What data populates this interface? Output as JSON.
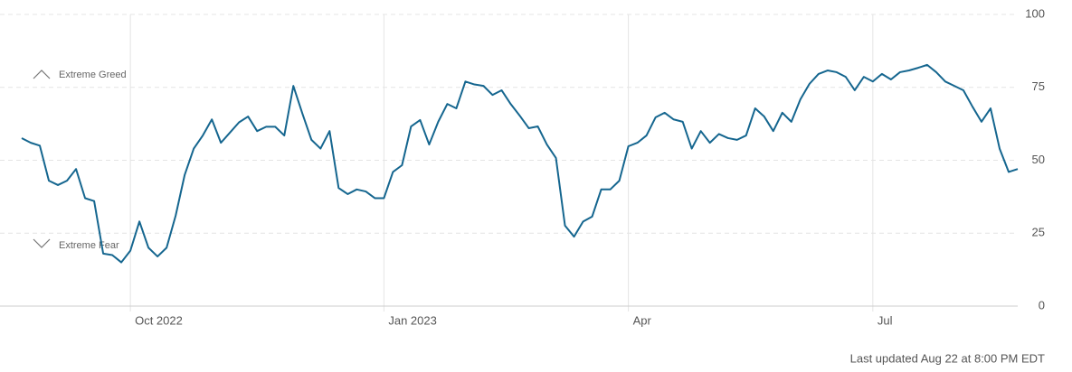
{
  "chart_data": {
    "type": "line",
    "annotations": [
      "Extreme Greed",
      "Extreme Fear"
    ],
    "footer": "Last updated Aug 22 at 8:00 PM EDT",
    "categories": [
      null,
      null,
      null,
      null,
      null,
      null,
      null,
      null,
      null,
      null,
      null,
      null,
      "Oct 2022",
      null,
      null,
      null,
      null,
      null,
      null,
      null,
      null,
      null,
      null,
      null,
      null,
      null,
      null,
      null,
      null,
      null,
      null,
      null,
      null,
      null,
      null,
      null,
      null,
      null,
      null,
      null,
      "Jan 2023",
      null,
      null,
      null,
      null,
      null,
      null,
      null,
      null,
      null,
      null,
      null,
      null,
      null,
      null,
      null,
      null,
      null,
      null,
      null,
      null,
      null,
      null,
      null,
      null,
      null,
      null,
      "Apr",
      null,
      null,
      null,
      null,
      null,
      null,
      null,
      null,
      null,
      null,
      null,
      null,
      null,
      null,
      null,
      null,
      null,
      null,
      null,
      null,
      null,
      null,
      null,
      null,
      null,
      null,
      "Jul",
      null,
      null,
      null,
      null,
      null,
      null,
      null,
      null,
      null,
      null,
      null,
      null,
      null,
      null,
      null,
      null
    ],
    "series": [
      {
        "color": "#15668f",
        "values": [
          57.6,
          56,
          55,
          43,
          41.5,
          43,
          47,
          37,
          36,
          18,
          17.5,
          15,
          19,
          29,
          20,
          17,
          20,
          31,
          45,
          54,
          58.5,
          64,
          56,
          59.5,
          63,
          65,
          60,
          61.5,
          61.5,
          58.5,
          75.5,
          66,
          57,
          54,
          60,
          40.5,
          38.4,
          40,
          39.3,
          37,
          37,
          46,
          48.3,
          61.6,
          63.8,
          55.4,
          63.2,
          69.3,
          67.8,
          77,
          76,
          75.5,
          72.4,
          74,
          69.3,
          65.3,
          61,
          61.6,
          55.4,
          50.8,
          27.6,
          23.8,
          29,
          30.7,
          40,
          40,
          43,
          54.8,
          56,
          58.5,
          64.7,
          66.3,
          64,
          63.2,
          54,
          60,
          56,
          59,
          57.6,
          57,
          58.5,
          67.8,
          65,
          60,
          66.3,
          63.2,
          70.9,
          76.2,
          79.6,
          80.8,
          80.2,
          78.6,
          74,
          78.6,
          77,
          79.6,
          77.7,
          80.2,
          80.8,
          81.7,
          82.7,
          80.2,
          77,
          75.5,
          74,
          68.4,
          63.2,
          67.8,
          54,
          46,
          47
        ]
      }
    ],
    "ylim": [
      0,
      100
    ],
    "yticks": [
      0,
      25,
      50,
      75,
      100
    ],
    "grid": true
  }
}
